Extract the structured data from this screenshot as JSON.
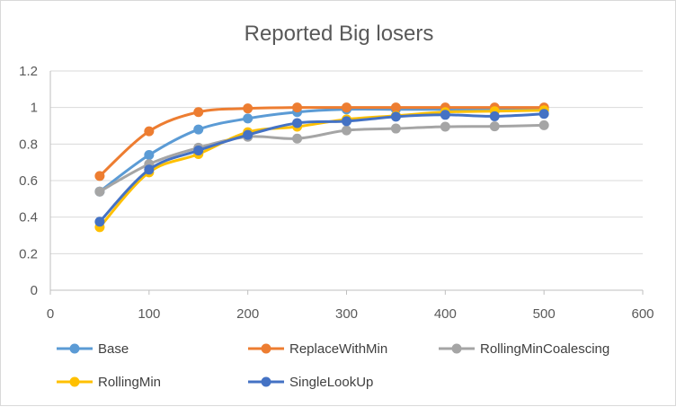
{
  "chart_data": {
    "type": "line",
    "title": "Reported  Big losers",
    "xlabel": "",
    "ylabel": "",
    "xlim": [
      0,
      600
    ],
    "ylim": [
      0,
      1.2
    ],
    "x_ticks": [
      0,
      100,
      200,
      300,
      400,
      500,
      600
    ],
    "y_ticks": [
      0,
      0.2,
      0.4,
      0.6,
      0.8,
      1,
      1.2
    ],
    "x_tick_labels": [
      "0",
      "100",
      "200",
      "300",
      "400",
      "500",
      "600"
    ],
    "y_tick_labels": [
      "0",
      "0.2",
      "0.4",
      "0.6",
      "0.8",
      "1",
      "1.2"
    ],
    "grid": "horizontal",
    "legend_position": "bottom",
    "x": [
      50,
      100,
      150,
      200,
      250,
      300,
      350,
      400,
      450,
      500
    ],
    "series": [
      {
        "name": "Base",
        "color": "#5b9bd5",
        "values": [
          0.54,
          0.74,
          0.88,
          0.94,
          0.975,
          0.99,
          0.99,
          0.99,
          0.99,
          0.99
        ]
      },
      {
        "name": "ReplaceWithMin",
        "color": "#ed7d31",
        "values": [
          0.625,
          0.87,
          0.975,
          0.995,
          1.0,
          1.0,
          1.0,
          1.0,
          1.0,
          1.0
        ]
      },
      {
        "name": "RollingMinCoalescing",
        "color": "#a5a5a5",
        "values": [
          0.54,
          0.69,
          0.78,
          0.84,
          0.83,
          0.875,
          0.885,
          0.895,
          0.897,
          0.903
        ]
      },
      {
        "name": "RollingMin",
        "color": "#ffc000",
        "values": [
          0.345,
          0.645,
          0.745,
          0.865,
          0.895,
          0.935,
          0.955,
          0.975,
          0.98,
          0.985
        ]
      },
      {
        "name": "SingleLookUp",
        "color": "#4472c4",
        "values": [
          0.375,
          0.66,
          0.765,
          0.85,
          0.915,
          0.925,
          0.95,
          0.96,
          0.952,
          0.965
        ]
      }
    ],
    "legend_rows": [
      [
        "Base",
        "ReplaceWithMin",
        "RollingMinCoalescing"
      ],
      [
        "RollingMin",
        "SingleLookUp"
      ]
    ]
  }
}
